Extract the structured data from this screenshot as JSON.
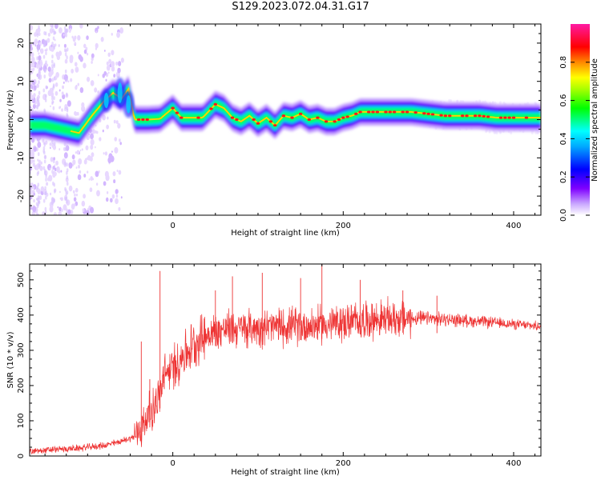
{
  "figure": {
    "title": "S129.2023.072.04.31.G17"
  },
  "chart_data": [
    {
      "type": "heatmap",
      "xlabel": "Height of straight line (km)",
      "ylabel": "Frequency (Hz)",
      "xlim": [
        -168,
        432
      ],
      "ylim": [
        -25,
        25
      ],
      "xticks": [
        0,
        200,
        400
      ],
      "yticks": [
        -20,
        -10,
        0,
        10,
        20
      ],
      "colorbar": {
        "label": "Normalized spectral amplitude",
        "range": [
          0,
          1
        ],
        "ticks": [
          0.0,
          0.2,
          0.4,
          0.6,
          0.8
        ],
        "colormap": [
          "#ffffff",
          "#7f00ff",
          "#0000ff",
          "#00ffff",
          "#00ff00",
          "#ffff00",
          "#ff0000",
          "#ff00aa"
        ]
      },
      "ridge": {
        "x": [
          -168,
          -150,
          -130,
          -110,
          -95,
          -80,
          -70,
          -60,
          -52,
          -45,
          -30,
          -15,
          0,
          10,
          20,
          35,
          50,
          60,
          70,
          80,
          90,
          100,
          110,
          120,
          130,
          140,
          150,
          160,
          170,
          180,
          190,
          200,
          210,
          220,
          240,
          260,
          280,
          300,
          320,
          340,
          360,
          380,
          400,
          432
        ],
        "y": [
          -1.5,
          -1.5,
          -2.5,
          -3.5,
          1,
          5,
          7,
          5.5,
          8,
          0,
          0,
          0.2,
          3,
          0.5,
          0.5,
          0.5,
          4,
          3,
          0.5,
          -0.5,
          1,
          -1,
          0.5,
          -1.5,
          1,
          0.5,
          1.5,
          0,
          0.5,
          -0.5,
          -0.5,
          0.5,
          1,
          2,
          2,
          2,
          2,
          1.5,
          1,
          1,
          1,
          0.5,
          0.5,
          0.5
        ]
      }
    },
    {
      "type": "line",
      "xlabel": "Height of straight line (km)",
      "ylabel": "SNR (10 * v/v)",
      "xlim": [
        -168,
        432
      ],
      "ylim": [
        0,
        545
      ],
      "xticks": [
        0,
        200,
        400
      ],
      "yticks": [
        0,
        100,
        200,
        300,
        400,
        500
      ],
      "color": "#ee3333",
      "trend": {
        "x": [
          -168,
          -140,
          -110,
          -80,
          -60,
          -45,
          -38,
          -30,
          -22,
          -15,
          -10,
          -5,
          0,
          10,
          20,
          30,
          40,
          60,
          80,
          100,
          130,
          160,
          190,
          220,
          260,
          300,
          340,
          380,
          410,
          432
        ],
        "y": [
          12,
          18,
          22,
          30,
          42,
          55,
          75,
          110,
          140,
          175,
          230,
          240,
          250,
          280,
          305,
          330,
          345,
          360,
          362,
          365,
          368,
          370,
          375,
          385,
          390,
          390,
          385,
          378,
          372,
          368
        ]
      },
      "spikes": [
        {
          "x": -37,
          "y": 325
        },
        {
          "x": -27,
          "y": 218
        },
        {
          "x": -15,
          "y": 525
        },
        {
          "x": -10,
          "y": 255
        },
        {
          "x": 50,
          "y": 470
        },
        {
          "x": 70,
          "y": 510
        },
        {
          "x": 105,
          "y": 520
        },
        {
          "x": 150,
          "y": 505
        },
        {
          "x": 175,
          "y": 545
        },
        {
          "x": 220,
          "y": 500
        },
        {
          "x": 270,
          "y": 470
        },
        {
          "x": 310,
          "y": 455
        }
      ]
    }
  ]
}
